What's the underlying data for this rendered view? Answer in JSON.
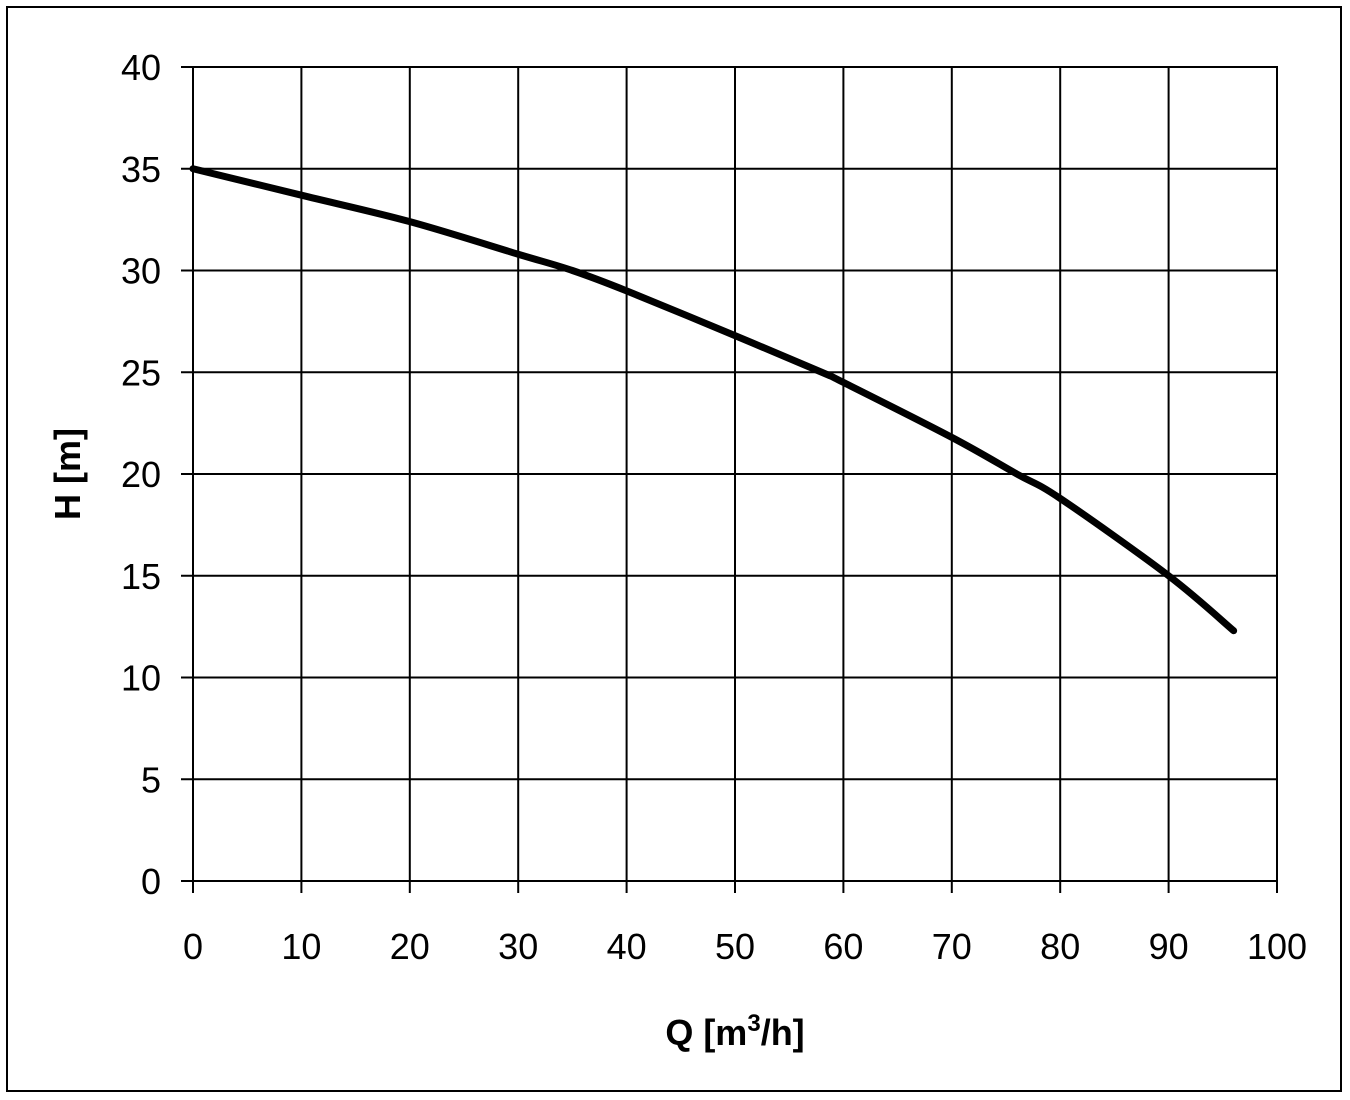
{
  "chart_data": {
    "type": "line",
    "title": "",
    "xlabel": "Q [m",
    "xlabel_sup": "3",
    "xlabel_suffix": "/h]",
    "ylabel": "H [m]",
    "xlim": [
      0,
      100
    ],
    "ylim": [
      0,
      40
    ],
    "x_ticks": [
      0,
      10,
      20,
      30,
      40,
      50,
      60,
      70,
      80,
      90,
      100
    ],
    "y_ticks": [
      0,
      5,
      10,
      15,
      20,
      25,
      30,
      35,
      40
    ],
    "grid": true,
    "line_color": "#000000",
    "series": [
      {
        "x": [
          0,
          10,
          20,
          30,
          35,
          40,
          50,
          58,
          60,
          70,
          76,
          80,
          90,
          96
        ],
        "y": [
          35,
          33.7,
          32.4,
          30.8,
          30,
          29,
          26.8,
          25,
          24.5,
          21.8,
          20,
          18.8,
          15,
          12.3
        ]
      }
    ]
  }
}
